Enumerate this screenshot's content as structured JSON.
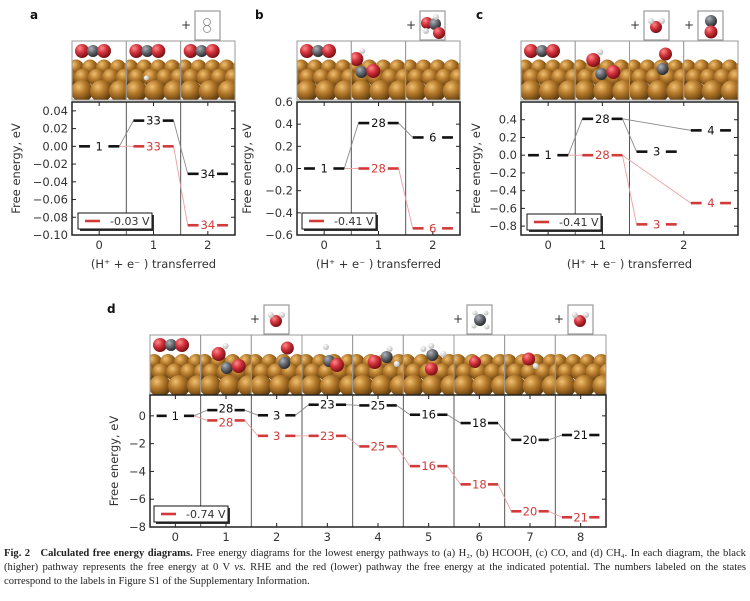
{
  "caption": {
    "label": "Fig. 2",
    "title": "Calculated free energy diagrams.",
    "text_1": " Free energy diagrams for the lowest energy pathways to (a) H₂, (b) HCOOH, (c) CO, and (d) CH₄. In each diagram, the black (higher) pathway represents the free energy at 0 V ",
    "vs": "vs.",
    "text_2": " RHE and the red (lower) pathway the free energy at the indicated potential. The numbers labeled on the states correspond to the labels in Figure S1 of the Supplementary Information."
  },
  "colors": {
    "black_pathway": "#111111",
    "red_pathway": "#d23a3a",
    "copper": "#b57a2c",
    "oxygen": "#d0303a",
    "carbon": "#666a70",
    "hydrogen": "#f2f2f2"
  },
  "chart_data": [
    {
      "panel": "a",
      "type": "free-energy-diagram",
      "xlabel": "(H⁺ + e⁻ ) transferred",
      "ylabel": "Free energy, eV",
      "ylim": [
        -0.1,
        0.05
      ],
      "yticks": [
        0.04,
        0.02,
        0.0,
        -0.02,
        -0.04,
        -0.06,
        -0.08,
        -0.1
      ],
      "ytick_labels": [
        "0.04",
        "0.02",
        "0.00",
        "−0.02",
        "−0.04",
        "−0.06",
        "−0.08",
        "−0.10"
      ],
      "columns": [
        "0",
        "1",
        "2"
      ],
      "legend": "-0.03 V",
      "states": [
        {
          "label": "1",
          "col": 0,
          "prev": null,
          "black": 0.0,
          "red": 0.0
        },
        {
          "label": "33",
          "col": 1,
          "prev": 0,
          "black": 0.029,
          "red": 0.0
        },
        {
          "label": "34",
          "col": 2,
          "prev": 1,
          "black": -0.031,
          "red": -0.089
        }
      ],
      "tiles": [
        "CO2-icon",
        "CO2-H-icon",
        "CO2-icon"
      ],
      "gas": [
        "H2-icon"
      ]
    },
    {
      "panel": "b",
      "type": "free-energy-diagram",
      "xlabel": "(H⁺ + e⁻ ) transferred",
      "ylabel": "Free energy, eV",
      "ylim": [
        -0.6,
        0.6
      ],
      "yticks": [
        0.6,
        0.4,
        0.2,
        0.0,
        -0.2,
        -0.4,
        -0.6
      ],
      "ytick_labels": [
        "0.6",
        "0.4",
        "0.2",
        "0.0",
        "−0.2",
        "−0.4",
        "−0.6"
      ],
      "columns": [
        "0",
        "1",
        "2"
      ],
      "legend": "-0.41 V",
      "states": [
        {
          "label": "1",
          "col": 0,
          "prev": null,
          "black": 0.0,
          "red": 0.0
        },
        {
          "label": "28",
          "col": 1,
          "prev": 0,
          "black": 0.41,
          "red": 0.0
        },
        {
          "label": "6",
          "col": 2,
          "prev": 1,
          "black": 0.28,
          "red": -0.54
        }
      ],
      "tiles": [
        "CO2-icon",
        "HCOO-icon",
        "empty-surface-icon"
      ],
      "gas": [
        "HCOOH-icon"
      ]
    },
    {
      "panel": "c",
      "type": "free-energy-diagram",
      "xlabel": "(H⁺ + e⁻ ) transferred",
      "ylabel": "Free energy, eV",
      "ylim": [
        -0.9,
        0.6
      ],
      "yticks": [
        0.4,
        0.2,
        0.0,
        -0.2,
        -0.4,
        -0.6,
        -0.8
      ],
      "ytick_labels": [
        "0.4",
        "0.2",
        "0.0",
        "−0.2",
        "−0.4",
        "−0.6",
        "−0.8"
      ],
      "columns": [
        "0",
        "1",
        "2"
      ],
      "legend": "-0.41 V",
      "states": [
        {
          "label": "1",
          "col": 0,
          "prev": null,
          "black": 0.0,
          "red": 0.0
        },
        {
          "label": "28",
          "col": 1,
          "prev": 0,
          "black": 0.41,
          "red": 0.0
        },
        {
          "label": "3",
          "col": 2,
          "prev": 1,
          "black": 0.04,
          "red": -0.78
        },
        {
          "label": "4",
          "col": 2,
          "prev": 1,
          "black": 0.28,
          "red": -0.54
        }
      ],
      "tiles": [
        "CO2-icon",
        "COOH-icon",
        "CO-icon",
        "empty-surface-icon"
      ],
      "gas": [
        "H2O-icon",
        "CO-gas-icon"
      ]
    },
    {
      "panel": "d",
      "type": "free-energy-diagram",
      "xlabel": "",
      "ylabel": "Free energy, eV",
      "ylim": [
        -8,
        1.5
      ],
      "yticks": [
        0,
        -2,
        -4,
        -6,
        -8
      ],
      "ytick_labels": [
        "0",
        "−2",
        "−4",
        "−6",
        "−8"
      ],
      "columns": [
        "0",
        "1",
        "2",
        "3",
        "4",
        "5",
        "6",
        "7",
        "8"
      ],
      "legend": "-0.74 V",
      "states": [
        {
          "label": "1",
          "col": 0,
          "prev": null,
          "black": 0.0,
          "red": 0.0
        },
        {
          "label": "28",
          "col": 1,
          "prev": 0,
          "black": 0.41,
          "red": -0.33
        },
        {
          "label": "3",
          "col": 2,
          "prev": 1,
          "black": 0.04,
          "red": -1.44
        },
        {
          "label": "23",
          "col": 3,
          "prev": 2,
          "black": 0.8,
          "red": -1.44
        },
        {
          "label": "25",
          "col": 4,
          "prev": 3,
          "black": 0.75,
          "red": -2.2
        },
        {
          "label": "16",
          "col": 5,
          "prev": 4,
          "black": 0.08,
          "red": -3.62
        },
        {
          "label": "18",
          "col": 6,
          "prev": 5,
          "black": -0.52,
          "red": -4.93
        },
        {
          "label": "20",
          "col": 7,
          "prev": 6,
          "black": -1.73,
          "red": -6.87
        },
        {
          "label": "21",
          "col": 8,
          "prev": 7,
          "black": -1.38,
          "red": -7.3
        }
      ],
      "tiles": [
        "CO2-icon",
        "COOH-icon",
        "CO-icon",
        "CHO-icon",
        "CHOH-icon",
        "CH3O-icon",
        "O-icon",
        "OH-icon",
        "empty-surface-icon"
      ],
      "gas": [
        "H2O-icon",
        "CH4-icon",
        "H2O-icon"
      ]
    }
  ]
}
